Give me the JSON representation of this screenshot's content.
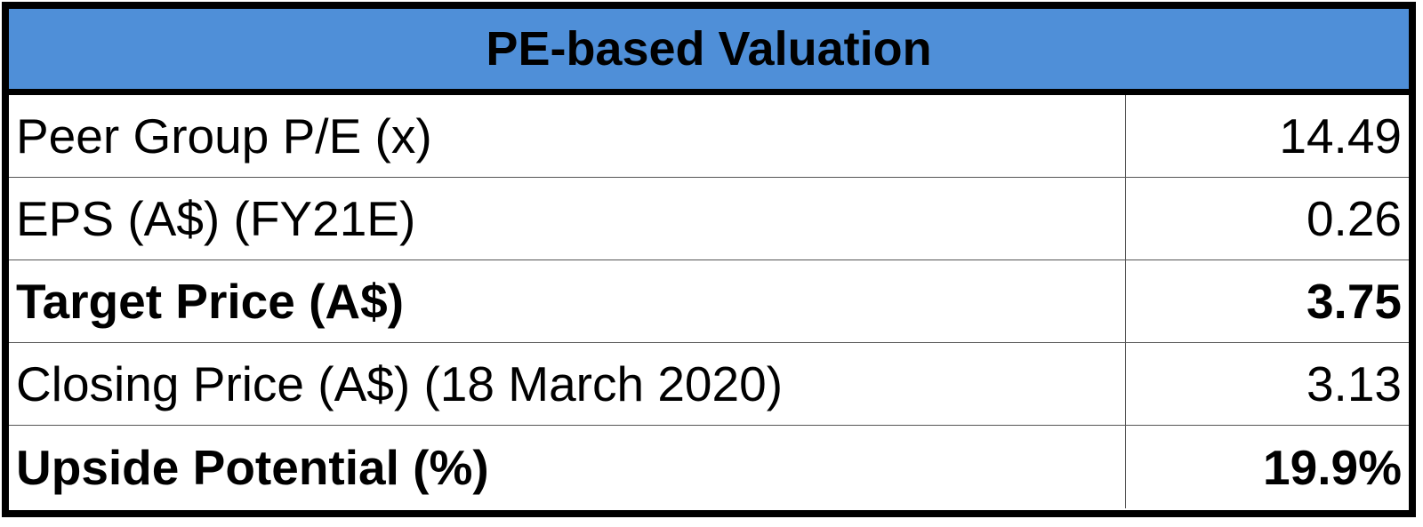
{
  "table": {
    "title": "PE-based Valuation",
    "rows": [
      [
        "Peer Group P/E (x)",
        "14.49"
      ],
      [
        "EPS (A$) (FY21E)",
        "0.26"
      ],
      [
        "Target Price (A$)",
        "3.75"
      ],
      [
        "Closing Price (A$) (18 March 2020)",
        "3.13"
      ],
      [
        "Upside Potential (%)",
        "19.9%"
      ]
    ]
  }
}
